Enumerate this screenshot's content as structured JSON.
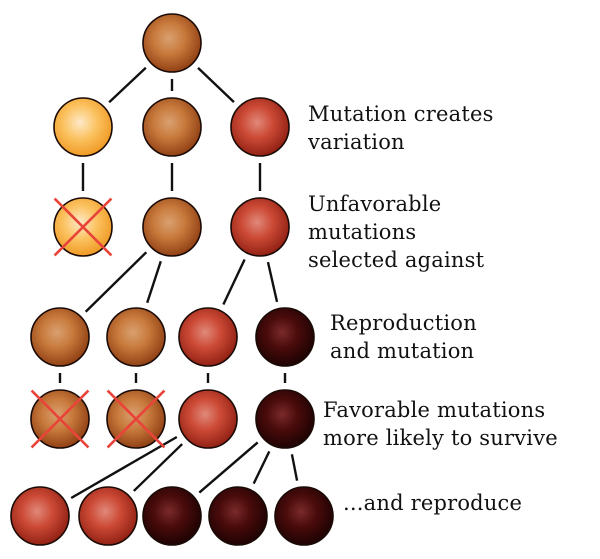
{
  "labels": {
    "row1": [
      "Mutation creates",
      "variation"
    ],
    "row2": [
      "Unfavorable",
      "mutations",
      "selected against"
    ],
    "row3": [
      "Reproduction",
      "and mutation"
    ],
    "row4": [
      "Favorable mutations",
      "more likely to survive"
    ],
    "row5": [
      "...and reproduce"
    ]
  },
  "colors": {
    "orange": "#c8702e",
    "yellow": "#f7b84a",
    "red": "#c0392b",
    "dark": "#3a0606",
    "cross": "#e8443a",
    "line": "#111111"
  },
  "nodes": [
    {
      "id": "n0",
      "color": "orange",
      "crossed": false
    },
    {
      "id": "n1",
      "color": "yellow",
      "crossed": false
    },
    {
      "id": "n2",
      "color": "orange",
      "crossed": false
    },
    {
      "id": "n3",
      "color": "red",
      "crossed": false
    },
    {
      "id": "n4",
      "color": "yellow",
      "crossed": true
    },
    {
      "id": "n5",
      "color": "orange",
      "crossed": false
    },
    {
      "id": "n6",
      "color": "red",
      "crossed": false
    },
    {
      "id": "n7",
      "color": "orange",
      "crossed": false
    },
    {
      "id": "n8",
      "color": "orange",
      "crossed": false
    },
    {
      "id": "n9",
      "color": "red",
      "crossed": false
    },
    {
      "id": "n10",
      "color": "dark",
      "crossed": false
    },
    {
      "id": "n11",
      "color": "orange",
      "crossed": true
    },
    {
      "id": "n12",
      "color": "orange",
      "crossed": true
    },
    {
      "id": "n13",
      "color": "red",
      "crossed": false
    },
    {
      "id": "n14",
      "color": "dark",
      "crossed": false
    },
    {
      "id": "n15",
      "color": "red",
      "crossed": false
    },
    {
      "id": "n16",
      "color": "red",
      "crossed": false
    },
    {
      "id": "n17",
      "color": "dark",
      "crossed": false
    },
    {
      "id": "n18",
      "color": "dark",
      "crossed": false
    },
    {
      "id": "n19",
      "color": "dark",
      "crossed": false
    }
  ],
  "edges": [
    [
      "n0",
      "n1"
    ],
    [
      "n0",
      "n2"
    ],
    [
      "n0",
      "n3"
    ],
    [
      "n1",
      "n4"
    ],
    [
      "n2",
      "n5"
    ],
    [
      "n3",
      "n6"
    ],
    [
      "n5",
      "n7"
    ],
    [
      "n5",
      "n8"
    ],
    [
      "n6",
      "n9"
    ],
    [
      "n6",
      "n10"
    ],
    [
      "n7",
      "n11"
    ],
    [
      "n8",
      "n12"
    ],
    [
      "n9",
      "n13"
    ],
    [
      "n10",
      "n14"
    ],
    [
      "n13",
      "n15"
    ],
    [
      "n13",
      "n16"
    ],
    [
      "n14",
      "n17"
    ],
    [
      "n14",
      "n18"
    ],
    [
      "n14",
      "n19"
    ]
  ]
}
